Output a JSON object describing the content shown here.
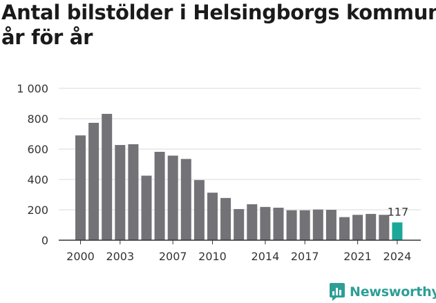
{
  "title_lines": [
    "Antal bilstölder i Helsingborgs kommun",
    "år för år"
  ],
  "brand": {
    "name": "Newsworthy",
    "icon": "newsworthy-logo-icon",
    "color": "#2e9e96"
  },
  "colors": {
    "bar": "#737277",
    "highlight": "#1ba89a",
    "grid": "#d9d9d9",
    "axis": "#333333",
    "text": "#333333"
  },
  "chart_data": {
    "type": "bar",
    "title": "Antal bilstölder i Helsingborgs kommun år för år",
    "categories": [
      "2000",
      "2001",
      "2002",
      "2003",
      "2004",
      "2005",
      "2006",
      "2007",
      "2008",
      "2009",
      "2010",
      "2011",
      "2012",
      "2013",
      "2014",
      "2015",
      "2016",
      "2017",
      "2018",
      "2019",
      "2020",
      "2021",
      "2022",
      "2023",
      "2024"
    ],
    "values": [
      690,
      773,
      832,
      627,
      632,
      425,
      582,
      557,
      535,
      396,
      313,
      278,
      205,
      237,
      219,
      214,
      197,
      197,
      202,
      200,
      152,
      167,
      173,
      167,
      117
    ],
    "x_tick_labels": [
      "2000",
      "2003",
      "2007",
      "2010",
      "2014",
      "2017",
      "2021",
      "2024"
    ],
    "y_ticks": [
      0,
      200,
      400,
      600,
      800,
      1000
    ],
    "y_tick_labels": [
      "0",
      "200",
      "400",
      "600",
      "800",
      "1 000"
    ],
    "ylim": [
      0,
      1000
    ],
    "highlight_category": "2024",
    "data_labels": [
      {
        "category": "2024",
        "text": "117"
      }
    ],
    "grid": true,
    "xlabel": "",
    "ylabel": ""
  }
}
